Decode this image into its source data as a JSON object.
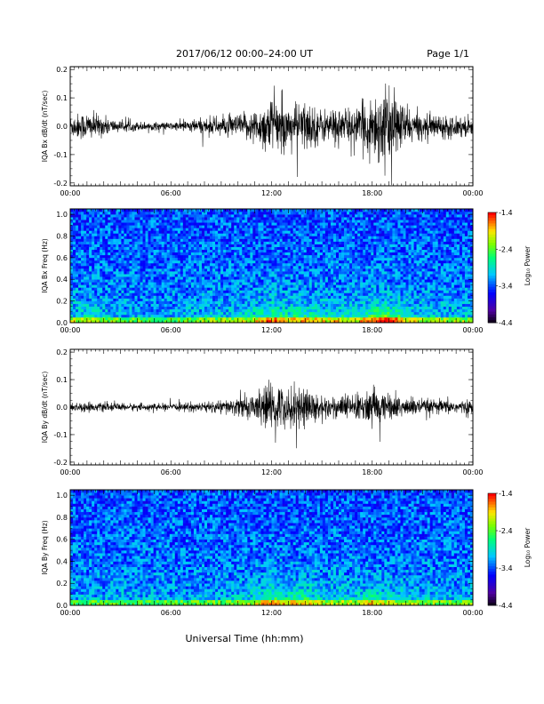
{
  "header": {
    "title": "2017/06/12  00:00–24:00 UT",
    "page": "Page 1/1"
  },
  "xaxis_title": "Universal Time (hh:mm)",
  "colors": {
    "trace": "#000000",
    "frame": "#000000"
  },
  "colorbar": {
    "ticks": [
      "-1.4",
      "-2.4",
      "-3.4",
      "-4.4"
    ],
    "label": "Log₁₀ Power"
  },
  "chart_data": [
    {
      "type": "line",
      "ylabel": "IQA Bx dB/dt (nT/sec)",
      "x_ticks": [
        "00:00",
        "06:00",
        "12:00",
        "18:00",
        "00:00"
      ],
      "y_ticks": [
        "0.2",
        "0.1",
        "0.0",
        "-0.1",
        "-0.2"
      ],
      "ylim": [
        -0.21,
        0.21
      ],
      "xlim_hours": [
        0,
        24
      ],
      "envelope": [
        {
          "t": 0,
          "a": 0.035
        },
        {
          "t": 1,
          "a": 0.045
        },
        {
          "t": 2,
          "a": 0.03
        },
        {
          "t": 3,
          "a": 0.015
        },
        {
          "t": 6,
          "a": 0.012
        },
        {
          "t": 8,
          "a": 0.025
        },
        {
          "t": 10,
          "a": 0.035
        },
        {
          "t": 11,
          "a": 0.05
        },
        {
          "t": 12,
          "a": 0.09
        },
        {
          "t": 13,
          "a": 0.06
        },
        {
          "t": 14,
          "a": 0.08
        },
        {
          "t": 15,
          "a": 0.05
        },
        {
          "t": 16,
          "a": 0.06
        },
        {
          "t": 17,
          "a": 0.05
        },
        {
          "t": 18.5,
          "a": 0.12
        },
        {
          "t": 19.5,
          "a": 0.09
        },
        {
          "t": 20.5,
          "a": 0.04
        },
        {
          "t": 22,
          "a": 0.035
        },
        {
          "t": 24,
          "a": 0.03
        }
      ]
    },
    {
      "type": "heatmap",
      "ylabel": "IQA Bx Freq (Hz)",
      "x_ticks": [
        "00:00",
        "06:00",
        "12:00",
        "18:00",
        "00:00"
      ],
      "y_ticks": [
        "1.0",
        "0.8",
        "0.6",
        "0.4",
        "0.2",
        "0.0"
      ],
      "ylim": [
        0,
        1.05
      ],
      "zlim": [
        -4.4,
        -1.4
      ],
      "colorbar_label": "Log₁₀ Power"
    },
    {
      "type": "line",
      "ylabel": "IQA By dB/dt (nT/sec)",
      "x_ticks": [
        "00:00",
        "06:00",
        "12:00",
        "18:00",
        "00:00"
      ],
      "y_ticks": [
        "0.2",
        "0.1",
        "0.0",
        "-0.1",
        "-0.2"
      ],
      "ylim": [
        -0.21,
        0.21
      ],
      "xlim_hours": [
        0,
        24
      ],
      "envelope": [
        {
          "t": 0,
          "a": 0.015
        },
        {
          "t": 3,
          "a": 0.012
        },
        {
          "t": 6,
          "a": 0.01
        },
        {
          "t": 9,
          "a": 0.02
        },
        {
          "t": 11,
          "a": 0.04
        },
        {
          "t": 12,
          "a": 0.08
        },
        {
          "t": 13,
          "a": 0.06
        },
        {
          "t": 14,
          "a": 0.07
        },
        {
          "t": 15,
          "a": 0.035
        },
        {
          "t": 17,
          "a": 0.04
        },
        {
          "t": 18,
          "a": 0.06
        },
        {
          "t": 19,
          "a": 0.04
        },
        {
          "t": 21,
          "a": 0.025
        },
        {
          "t": 24,
          "a": 0.02
        }
      ]
    },
    {
      "type": "heatmap",
      "ylabel": "IQA By Freq (Hz)",
      "x_ticks": [
        "00:00",
        "06:00",
        "12:00",
        "18:00",
        "00:00"
      ],
      "y_ticks": [
        "1.0",
        "0.8",
        "0.6",
        "0.4",
        "0.2",
        "0.0"
      ],
      "ylim": [
        0,
        1.05
      ],
      "zlim": [
        -4.4,
        -1.4
      ],
      "colorbar_label": "Log₁₀ Power"
    }
  ]
}
